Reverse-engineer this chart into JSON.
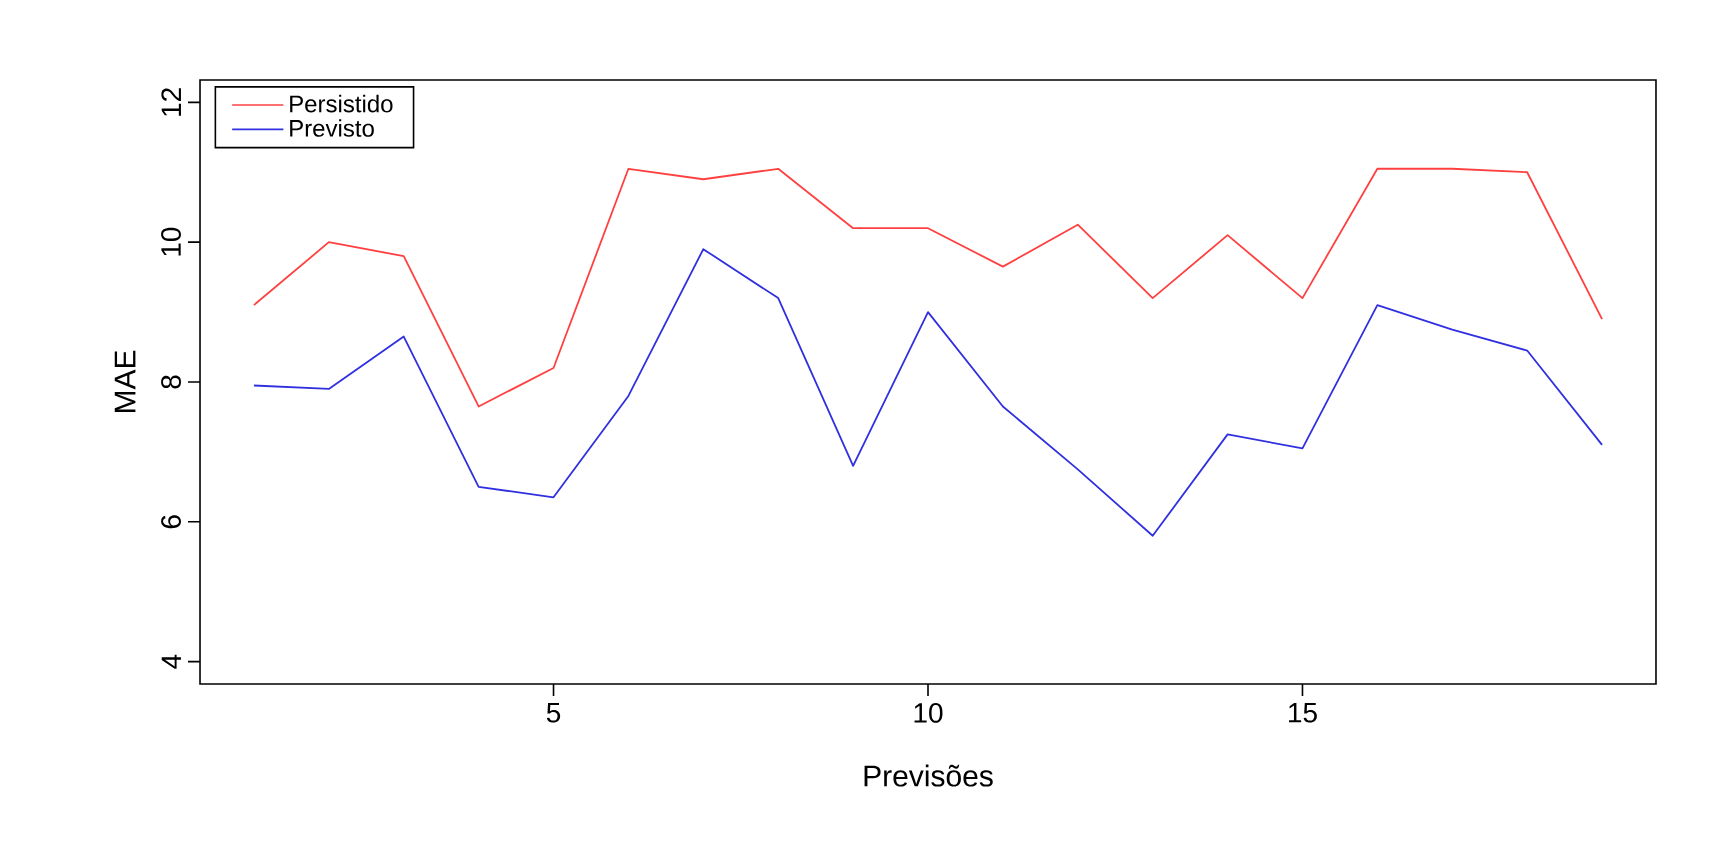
{
  "chart_data": {
    "type": "line",
    "xlabel": "Previsões",
    "ylabel": "MAE",
    "x": [
      1,
      2,
      3,
      4,
      5,
      6,
      7,
      8,
      9,
      10,
      11,
      12,
      13,
      14,
      15,
      16,
      17,
      18,
      19
    ],
    "series": [
      {
        "name": "Persistido",
        "color": "#ff4040",
        "values": [
          9.1,
          10.0,
          9.8,
          7.65,
          8.2,
          11.05,
          10.9,
          11.05,
          10.2,
          10.2,
          9.65,
          10.25,
          9.2,
          10.1,
          9.2,
          11.05,
          11.05,
          11.0,
          8.9
        ]
      },
      {
        "name": "Previsto",
        "color": "#3030e0",
        "values": [
          7.95,
          7.9,
          8.65,
          6.5,
          6.35,
          7.8,
          9.9,
          9.2,
          6.8,
          9.0,
          7.65,
          6.75,
          5.8,
          7.25,
          7.05,
          9.1,
          8.75,
          8.45,
          7.1
        ]
      }
    ],
    "xlim": [
      0.28,
      19.72
    ],
    "ylim": [
      3.68,
      12.32
    ],
    "xticks": [
      5,
      10,
      15
    ],
    "yticks": [
      4,
      6,
      8,
      10,
      12
    ],
    "legend": "top left",
    "grid": false,
    "marker": "none",
    "line_style": "solid"
  }
}
